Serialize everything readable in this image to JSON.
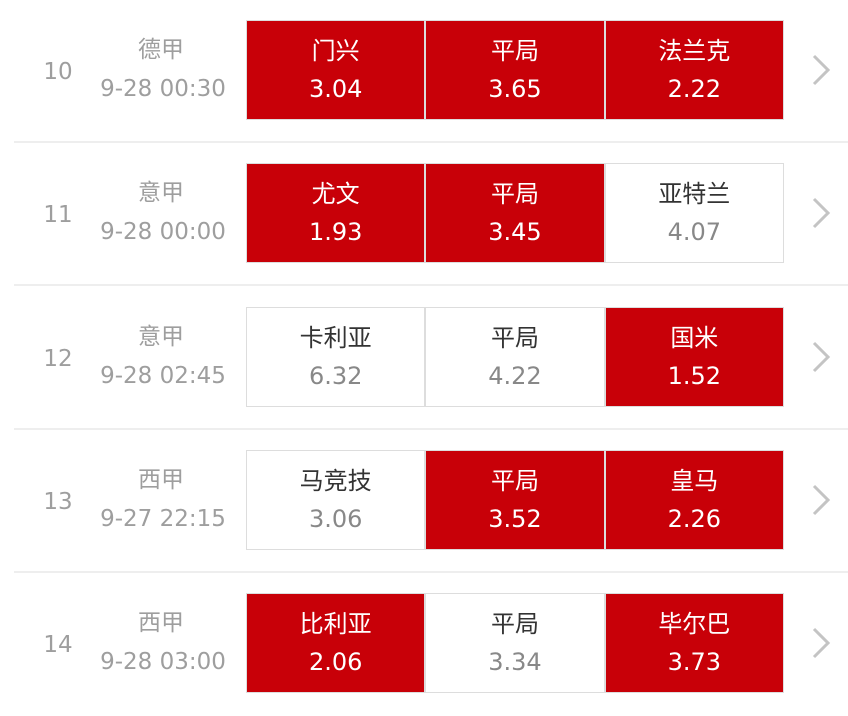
{
  "colors": {
    "selected": "#c80008"
  },
  "matches": [
    {
      "no": "10",
      "league": "德甲",
      "time": "9-28 00:30",
      "options": [
        {
          "label": "门兴",
          "odds": "3.04",
          "selected": true
        },
        {
          "label": "平局",
          "odds": "3.65",
          "selected": true
        },
        {
          "label": "法兰克",
          "odds": "2.22",
          "selected": true
        }
      ]
    },
    {
      "no": "11",
      "league": "意甲",
      "time": "9-28 00:00",
      "options": [
        {
          "label": "尤文",
          "odds": "1.93",
          "selected": true
        },
        {
          "label": "平局",
          "odds": "3.45",
          "selected": true
        },
        {
          "label": "亚特兰",
          "odds": "4.07",
          "selected": false
        }
      ]
    },
    {
      "no": "12",
      "league": "意甲",
      "time": "9-28 02:45",
      "options": [
        {
          "label": "卡利亚",
          "odds": "6.32",
          "selected": false
        },
        {
          "label": "平局",
          "odds": "4.22",
          "selected": false
        },
        {
          "label": "国米",
          "odds": "1.52",
          "selected": true
        }
      ]
    },
    {
      "no": "13",
      "league": "西甲",
      "time": "9-27 22:15",
      "options": [
        {
          "label": "马竞技",
          "odds": "3.06",
          "selected": false
        },
        {
          "label": "平局",
          "odds": "3.52",
          "selected": true
        },
        {
          "label": "皇马",
          "odds": "2.26",
          "selected": true
        }
      ]
    },
    {
      "no": "14",
      "league": "西甲",
      "time": "9-28 03:00",
      "options": [
        {
          "label": "比利亚",
          "odds": "2.06",
          "selected": true
        },
        {
          "label": "平局",
          "odds": "3.34",
          "selected": false
        },
        {
          "label": "毕尔巴",
          "odds": "3.73",
          "selected": true
        }
      ]
    }
  ]
}
